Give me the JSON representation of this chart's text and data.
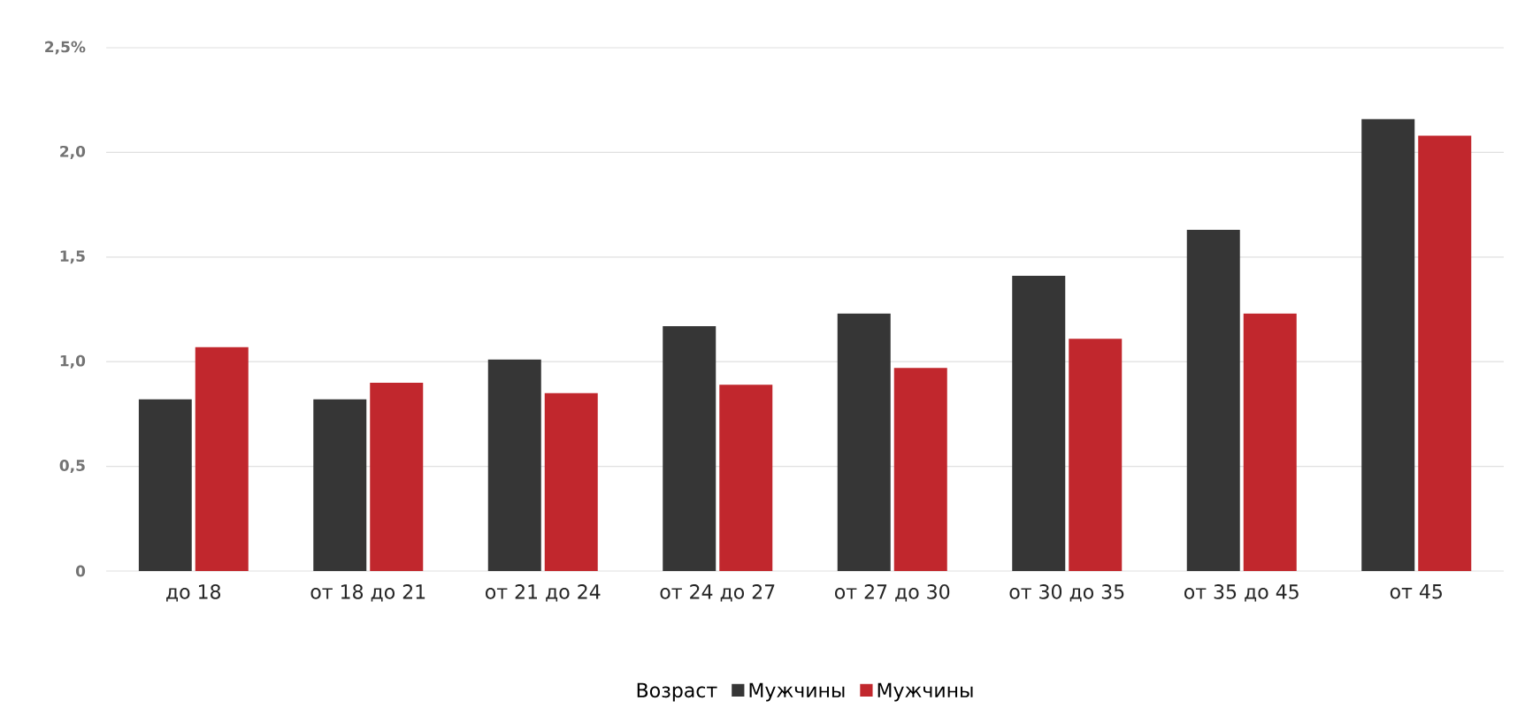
{
  "chart_data": {
    "type": "bar",
    "legend_title": "Возраст",
    "categories": [
      "до 18",
      "от 18 до 21",
      "от 21 до 24",
      "от 24 до 27",
      "от 27 до 30",
      "от 30 до 35",
      "от 35 до 45",
      "от 45"
    ],
    "series": [
      {
        "name": "Мужчины",
        "color": "#363636",
        "values": [
          0.82,
          0.82,
          1.01,
          1.17,
          1.23,
          1.41,
          1.63,
          2.16
        ]
      },
      {
        "name": "Мужчины",
        "color": "#c1272d",
        "values": [
          1.07,
          0.9,
          0.85,
          0.89,
          0.97,
          1.11,
          1.23,
          2.08
        ]
      }
    ],
    "ylim": [
      0,
      2.5
    ],
    "yticks": [
      0,
      {
        "value": 0.5,
        "label": "0,5"
      },
      {
        "value": 1.0,
        "label": "1,0"
      },
      {
        "value": 1.5,
        "label": "1,5"
      },
      {
        "value": 2.0,
        "label": "2,0"
      },
      {
        "value": 2.5,
        "label": "2,5%"
      }
    ],
    "grid": "y",
    "legend": "bottom"
  }
}
